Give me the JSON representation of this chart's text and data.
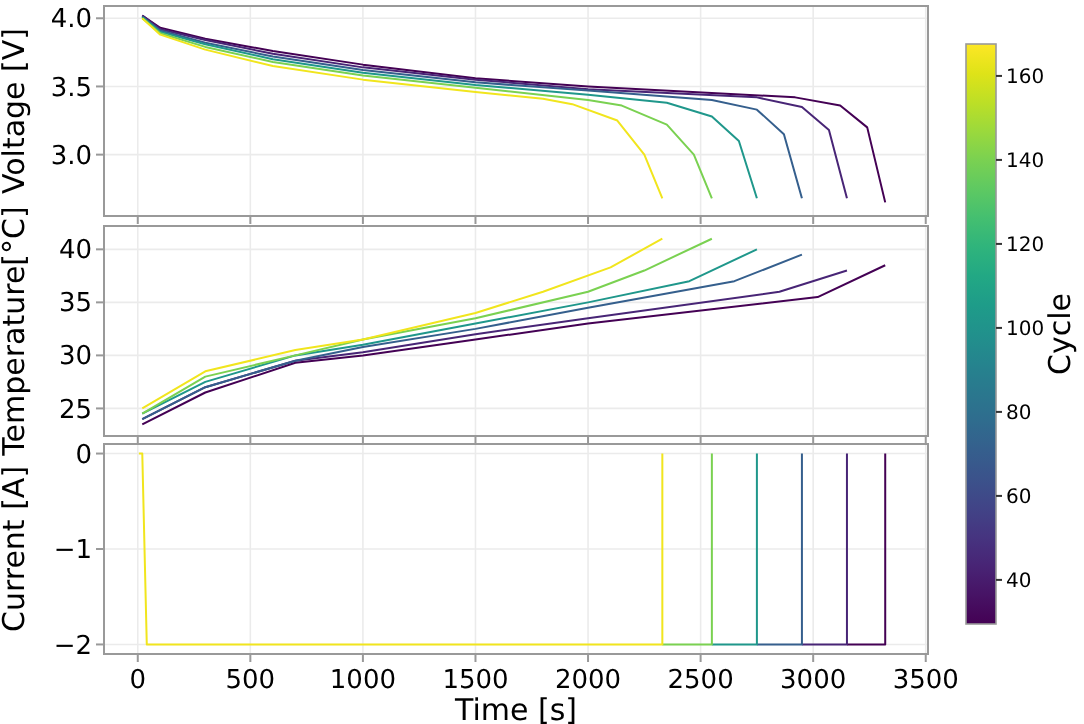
{
  "chart_data": [
    {
      "type": "line",
      "ylabel": "Voltage [V]",
      "xlim": [
        -150,
        3510
      ],
      "xticks": [
        0,
        500,
        1000,
        1500,
        2000,
        2500,
        3000,
        3500
      ],
      "ylim": [
        2.55,
        4.09
      ],
      "yticks": [
        {
          "value": 3,
          "label": "3.0"
        },
        {
          "value": 3.5,
          "label": "3.5"
        },
        {
          "value": 4,
          "label": "4.0"
        }
      ],
      "tick_labels": "y",
      "grid": true,
      "marker": "none",
      "line_style": "solid",
      "clabel": "Cycle",
      "clim": [
        29.5,
        167.6
      ],
      "cticks": [
        40,
        60,
        80,
        100,
        120,
        140,
        160
      ],
      "series": [
        {
          "color": "#440154",
          "x": [
            20,
            100,
            300,
            600,
            1000,
            1500,
            2000,
            2920,
            3120,
            3240,
            3320
          ],
          "values": [
            4.02,
            3.93,
            3.85,
            3.76,
            3.66,
            3.56,
            3.5,
            3.42,
            3.36,
            3.2,
            2.65
          ]
        },
        {
          "color": "#482576",
          "x": [
            20,
            100,
            300,
            600,
            1000,
            1500,
            2000,
            2750,
            2950,
            3070,
            3150
          ],
          "values": [
            4.02,
            3.92,
            3.84,
            3.74,
            3.64,
            3.55,
            3.48,
            3.42,
            3.35,
            3.18,
            2.68
          ]
        },
        {
          "color": "#355f8d",
          "x": [
            20,
            100,
            300,
            600,
            1000,
            1500,
            2000,
            2550,
            2750,
            2870,
            2950
          ],
          "values": [
            4.01,
            3.91,
            3.82,
            3.72,
            3.62,
            3.53,
            3.47,
            3.4,
            3.33,
            3.15,
            2.68
          ]
        },
        {
          "color": "#1f978b",
          "x": [
            20,
            100,
            300,
            600,
            1000,
            1500,
            2000,
            2350,
            2550,
            2670,
            2750
          ],
          "values": [
            4.01,
            3.9,
            3.81,
            3.7,
            3.6,
            3.51,
            3.44,
            3.38,
            3.28,
            3.1,
            2.68
          ]
        },
        {
          "color": "#7ad151",
          "x": [
            20,
            100,
            300,
            600,
            1000,
            1500,
            2000,
            2150,
            2350,
            2470,
            2550
          ],
          "values": [
            4,
            3.89,
            3.79,
            3.68,
            3.58,
            3.49,
            3.4,
            3.36,
            3.22,
            3,
            2.68
          ]
        },
        {
          "color": "#f1e51d",
          "x": [
            20,
            100,
            300,
            600,
            1000,
            1500,
            1800,
            1930,
            2130,
            2250,
            2330
          ],
          "values": [
            4,
            3.88,
            3.77,
            3.65,
            3.55,
            3.46,
            3.41,
            3.37,
            3.25,
            3,
            2.68
          ]
        }
      ]
    },
    {
      "type": "line",
      "ylabel": "Temperature[°C]",
      "xlim": [
        -150,
        3510
      ],
      "xticks": [
        0,
        500,
        1000,
        1500,
        2000,
        2500,
        3000,
        3500
      ],
      "ylim": [
        22.4,
        42.2
      ],
      "yticks": [
        25,
        30,
        35,
        40
      ],
      "tick_labels": "y",
      "grid": true,
      "marker": "none",
      "line_style": "solid",
      "series": [
        {
          "color": "#440154",
          "x": [
            20,
            300,
            700,
            1000,
            1500,
            2000,
            3020,
            3320
          ],
          "values": [
            23.5,
            26.5,
            29.3,
            30,
            31.5,
            33,
            35.5,
            38.5
          ]
        },
        {
          "color": "#482576",
          "x": [
            20,
            300,
            700,
            1000,
            1500,
            2000,
            2850,
            3150
          ],
          "values": [
            24,
            27,
            29.5,
            30.3,
            32,
            33.5,
            36,
            38
          ]
        },
        {
          "color": "#355f8d",
          "x": [
            20,
            300,
            700,
            1000,
            1500,
            2000,
            2650,
            2950
          ],
          "values": [
            24,
            27,
            29.5,
            30.8,
            32.5,
            34.5,
            37,
            39.5
          ]
        },
        {
          "color": "#1f978b",
          "x": [
            20,
            300,
            700,
            1000,
            1500,
            2000,
            2450,
            2750
          ],
          "values": [
            24.5,
            27.5,
            30,
            31,
            33,
            35,
            37,
            40
          ]
        },
        {
          "color": "#7ad151",
          "x": [
            20,
            300,
            700,
            1000,
            1500,
            2000,
            2250,
            2550
          ],
          "values": [
            24.5,
            28,
            30,
            31.5,
            33.5,
            36,
            38,
            41
          ]
        },
        {
          "color": "#f1e51d",
          "x": [
            20,
            300,
            700,
            1000,
            1500,
            1800,
            2100,
            2330
          ],
          "values": [
            25,
            28.5,
            30.5,
            31.5,
            34,
            36,
            38.3,
            41
          ]
        }
      ]
    },
    {
      "type": "line",
      "xlabel": "Time [s]",
      "ylabel": "Current [A]",
      "xlim": [
        -150,
        3510
      ],
      "xticks": [
        0,
        500,
        1000,
        1500,
        2000,
        2500,
        3000,
        3500
      ],
      "ylim": [
        -2.1,
        0.1
      ],
      "yticks": [
        {
          "value": -2,
          "label": "−2"
        },
        {
          "value": -1,
          "label": "−1"
        },
        0
      ],
      "grid": true,
      "marker": "none",
      "line_style": "solid",
      "series": [
        {
          "color": "#440154",
          "x": [
            3150,
            3320,
            3320
          ],
          "values": [
            -2,
            -2,
            0
          ]
        },
        {
          "color": "#482576",
          "x": [
            2950,
            3150,
            3150
          ],
          "values": [
            -2,
            -2,
            0
          ]
        },
        {
          "color": "#355f8d",
          "x": [
            2750,
            2950,
            2950
          ],
          "values": [
            -2,
            -2,
            0
          ]
        },
        {
          "color": "#1f978b",
          "x": [
            2550,
            2750,
            2750
          ],
          "values": [
            -2,
            -2,
            0
          ]
        },
        {
          "color": "#7ad151",
          "x": [
            2330,
            2550,
            2550
          ],
          "values": [
            -2,
            -2,
            0
          ]
        },
        {
          "color": "#f1e51d",
          "x": [
            5,
            20,
            40,
            2330,
            2330
          ],
          "values": [
            0,
            0,
            -2,
            -2,
            0
          ]
        }
      ]
    }
  ]
}
